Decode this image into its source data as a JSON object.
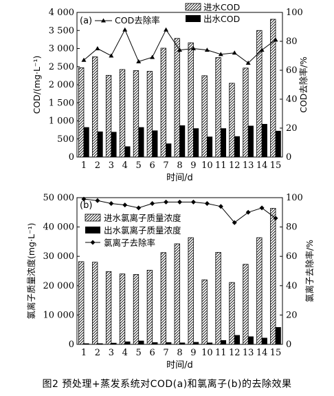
{
  "caption": "图2 预处理+蒸发系统对COD(a)和氯离子(b)的去除效果",
  "chart_data": [
    {
      "panel": "(a)",
      "type": "bar",
      "x": [
        1,
        2,
        3,
        4,
        5,
        6,
        7,
        8,
        9,
        10,
        11,
        12,
        13,
        14,
        15
      ],
      "xlabel": "时间/d",
      "ylabel": "COD/(mg·L⁻¹)",
      "y2label": "COD去除率/%",
      "ylim": [
        0,
        4000
      ],
      "y2lim": [
        0,
        100
      ],
      "yticks": [
        "0",
        "500",
        "1 000",
        "1 500",
        "2 000",
        "2 500",
        "3 000",
        "3 500",
        "4 000"
      ],
      "y2ticks": [
        "0",
        "20",
        "40",
        "60",
        "80",
        "100"
      ],
      "legend": [
        "COD去除率",
        "进水COD",
        "出水COD"
      ],
      "series": [
        {
          "name": "进水COD",
          "kind": "bar",
          "pattern": "hatch",
          "values": [
            2470,
            2770,
            2260,
            2420,
            2390,
            2370,
            3010,
            3280,
            3160,
            2250,
            2750,
            2040,
            2460,
            3500,
            3810
          ]
        },
        {
          "name": "出水COD",
          "kind": "bar",
          "pattern": "solid",
          "values": [
            820,
            700,
            690,
            290,
            820,
            730,
            370,
            870,
            790,
            560,
            790,
            570,
            860,
            910,
            720
          ]
        },
        {
          "name": "COD去除率",
          "kind": "line",
          "axis": "right",
          "marker": "triangle",
          "values": [
            67,
            75,
            70,
            88,
            66,
            69,
            88,
            74,
            75,
            74,
            71,
            72,
            65,
            74,
            81
          ]
        }
      ]
    },
    {
      "panel": "(b)",
      "type": "bar",
      "x": [
        1,
        2,
        3,
        4,
        5,
        6,
        7,
        8,
        9,
        10,
        11,
        12,
        13,
        14,
        15
      ],
      "xlabel": "时间/d",
      "ylabel": "氯离子质量浓度(mg·L⁻¹)",
      "y2label": "氯离子去除率/%",
      "ylim": [
        0,
        55000
      ],
      "y2lim": [
        0,
        100
      ],
      "yticks": [
        "0",
        "10 000",
        "20 000",
        "30 000",
        "40 000",
        "50 000"
      ],
      "y2ticks": [
        "0",
        "20",
        "40",
        "60",
        "80",
        "100"
      ],
      "legend": [
        "进水氯离子质量浓度",
        "出水氯离子质量浓度",
        "氯离子去除率"
      ],
      "series": [
        {
          "name": "进水氯离子质量浓度",
          "kind": "bar",
          "pattern": "hatch",
          "values": [
            31000,
            30800,
            27300,
            26400,
            26200,
            27800,
            34400,
            37700,
            40000,
            24200,
            34500,
            23200,
            30000,
            40000,
            51000
          ]
        },
        {
          "name": "出水氯离子质量浓度",
          "kind": "bar",
          "pattern": "solid",
          "values": [
            300,
            300,
            500,
            1000,
            1300,
            700,
            700,
            600,
            800,
            600,
            1500,
            3400,
            2900,
            2400,
            6400
          ]
        },
        {
          "name": "氯离子去除率",
          "kind": "line",
          "axis": "right",
          "marker": "diamond",
          "values": [
            99,
            98,
            96,
            95,
            93,
            96,
            97,
            97,
            97,
            96,
            94,
            83,
            90,
            93,
            86
          ]
        }
      ]
    }
  ]
}
